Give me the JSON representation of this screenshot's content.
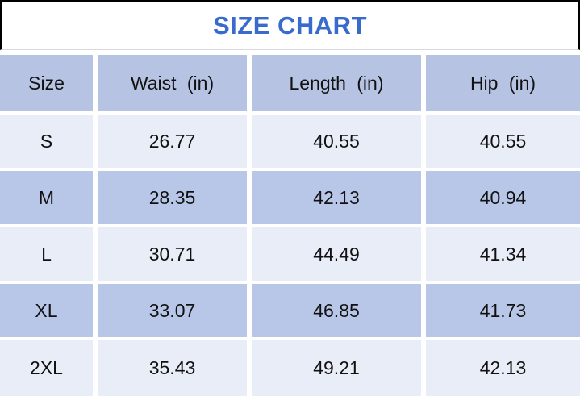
{
  "title": "SIZE CHART",
  "colors": {
    "title_blue": "#386bcc",
    "title_rule": "#d9d9d9",
    "header_bg": "#b6c3e3",
    "light_row_bg": "#e9edf8",
    "dark_row_bg": "#b8c6e8",
    "border_black": "#000000",
    "text_black": "#111111"
  },
  "table": {
    "columns": [
      "Size",
      "Waist (in)",
      "Length (in)",
      "Hip (in)"
    ],
    "rows": [
      {
        "size": "S",
        "waist": "26.77",
        "length": "40.55",
        "hip": "40.55"
      },
      {
        "size": "M",
        "waist": "28.35",
        "length": "42.13",
        "hip": "40.94"
      },
      {
        "size": "L",
        "waist": "30.71",
        "length": "44.49",
        "hip": "41.34"
      },
      {
        "size": "XL",
        "waist": "33.07",
        "length": "46.85",
        "hip": "41.73"
      },
      {
        "size": "2XL",
        "waist": "35.43",
        "length": "49.21",
        "hip": "42.13"
      }
    ]
  },
  "chart_data": {
    "type": "table",
    "title": "SIZE CHART",
    "columns": [
      "Size",
      "Waist (in)",
      "Length (in)",
      "Hip (in)"
    ],
    "rows": [
      [
        "S",
        26.77,
        40.55,
        40.55
      ],
      [
        "M",
        28.35,
        42.13,
        40.94
      ],
      [
        "L",
        30.71,
        44.49,
        41.34
      ],
      [
        "XL",
        33.07,
        46.85,
        41.73
      ],
      [
        "2XL",
        35.43,
        49.21,
        42.13
      ]
    ],
    "layout_hints": {
      "header_row_shaded": true,
      "alternating_row_shading": [
        "light",
        "dark",
        "light",
        "dark",
        "light"
      ],
      "cell_separators": "white gaps"
    }
  }
}
